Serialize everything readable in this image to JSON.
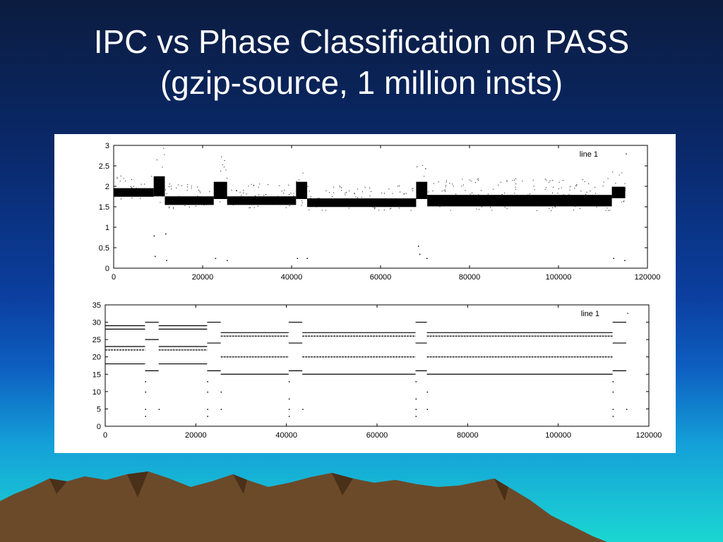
{
  "slide": {
    "title_line1": "IPC vs Phase Classification on PASS",
    "title_line2": "(gzip-source, 1 million insts)"
  },
  "colors": {
    "background_top": "#0b1c3f",
    "background_bottom": "#1bd6d2",
    "title_text": "#ffffff",
    "plot_background": "#ffffff",
    "plot_ink": "#000000",
    "mountain_fill": "#6b4a2a"
  },
  "chart_data": [
    {
      "type": "scatter",
      "title": "",
      "xlabel": "",
      "ylabel": "",
      "legend": {
        "entries": [
          "line 1"
        ],
        "placement": "top-right"
      },
      "xlim": [
        0,
        120000
      ],
      "ylim": [
        0,
        3
      ],
      "x_ticks": [
        "0",
        "20000",
        "40000",
        "60000",
        "80000",
        "100000",
        "120000"
      ],
      "y_ticks": [
        "0",
        "0.5",
        "1",
        "1.5",
        "2",
        "2.5",
        "3"
      ],
      "grid": false,
      "bands": [
        {
          "x_start": 0,
          "x_end": 9000,
          "y_center": 1.85,
          "y_spread": 0.15
        },
        {
          "x_start": 9000,
          "x_end": 11500,
          "y_center": 2.0,
          "y_spread": 0.35
        },
        {
          "x_start": 11500,
          "x_end": 22500,
          "y_center": 1.65,
          "y_spread": 0.15
        },
        {
          "x_start": 22500,
          "x_end": 25500,
          "y_center": 1.9,
          "y_spread": 0.3
        },
        {
          "x_start": 25500,
          "x_end": 41000,
          "y_center": 1.65,
          "y_spread": 0.15
        },
        {
          "x_start": 41000,
          "x_end": 43500,
          "y_center": 1.9,
          "y_spread": 0.3
        },
        {
          "x_start": 43500,
          "x_end": 68000,
          "y_center": 1.6,
          "y_spread": 0.15
        },
        {
          "x_start": 68000,
          "x_end": 70500,
          "y_center": 1.9,
          "y_spread": 0.3
        },
        {
          "x_start": 70500,
          "x_end": 112000,
          "y_center": 1.65,
          "y_spread": 0.2
        },
        {
          "x_start": 112000,
          "x_end": 115000,
          "y_center": 1.85,
          "y_spread": 0.2
        }
      ],
      "outliers": [
        [
          9000,
          0.8
        ],
        [
          9200,
          0.3
        ],
        [
          11600,
          0.85
        ],
        [
          11800,
          0.2
        ],
        [
          22800,
          0.25
        ],
        [
          25400,
          0.2
        ],
        [
          41200,
          0.25
        ],
        [
          43400,
          0.25
        ],
        [
          68400,
          0.55
        ],
        [
          68700,
          0.35
        ],
        [
          70300,
          0.25
        ],
        [
          112300,
          0.25
        ],
        [
          114800,
          0.2
        ]
      ]
    },
    {
      "type": "scatter",
      "title": "",
      "xlabel": "",
      "ylabel": "",
      "legend": {
        "entries": [
          "line 1"
        ],
        "placement": "top-right"
      },
      "xlim": [
        0,
        120000
      ],
      "ylim": [
        0,
        35
      ],
      "x_ticks": [
        "0",
        "20000",
        "40000",
        "60000",
        "80000",
        "100000",
        "120000"
      ],
      "y_ticks": [
        "0",
        "5",
        "10",
        "15",
        "20",
        "25",
        "30",
        "35"
      ],
      "grid": false,
      "segments": [
        {
          "x_start": 0,
          "x_end": 8800,
          "y": 29
        },
        {
          "x_start": 0,
          "x_end": 8800,
          "y": 28
        },
        {
          "x_start": 0,
          "x_end": 8800,
          "y": 23
        },
        {
          "x_start": 0,
          "x_end": 8800,
          "y": 22
        },
        {
          "x_start": 0,
          "x_end": 8800,
          "y": 18
        },
        {
          "x_start": 8800,
          "x_end": 11800,
          "y": 30
        },
        {
          "x_start": 8800,
          "x_end": 11800,
          "y": 25
        },
        {
          "x_start": 8800,
          "x_end": 11800,
          "y": 16
        },
        {
          "x_start": 11800,
          "x_end": 22500,
          "y": 29
        },
        {
          "x_start": 11800,
          "x_end": 22500,
          "y": 28
        },
        {
          "x_start": 11800,
          "x_end": 22500,
          "y": 23
        },
        {
          "x_start": 11800,
          "x_end": 22500,
          "y": 22
        },
        {
          "x_start": 11800,
          "x_end": 22500,
          "y": 18
        },
        {
          "x_start": 22500,
          "x_end": 25500,
          "y": 30
        },
        {
          "x_start": 22500,
          "x_end": 25500,
          "y": 24
        },
        {
          "x_start": 22500,
          "x_end": 25500,
          "y": 16
        },
        {
          "x_start": 25500,
          "x_end": 40500,
          "y": 27
        },
        {
          "x_start": 25500,
          "x_end": 40500,
          "y": 26
        },
        {
          "x_start": 25500,
          "x_end": 40500,
          "y": 20
        },
        {
          "x_start": 25500,
          "x_end": 40500,
          "y": 15
        },
        {
          "x_start": 40500,
          "x_end": 43500,
          "y": 30
        },
        {
          "x_start": 40500,
          "x_end": 43500,
          "y": 24
        },
        {
          "x_start": 40500,
          "x_end": 43500,
          "y": 16
        },
        {
          "x_start": 43500,
          "x_end": 68500,
          "y": 27
        },
        {
          "x_start": 43500,
          "x_end": 68500,
          "y": 26
        },
        {
          "x_start": 43500,
          "x_end": 68500,
          "y": 20
        },
        {
          "x_start": 43500,
          "x_end": 68500,
          "y": 15
        },
        {
          "x_start": 68500,
          "x_end": 71000,
          "y": 30
        },
        {
          "x_start": 68500,
          "x_end": 71000,
          "y": 24
        },
        {
          "x_start": 68500,
          "x_end": 71000,
          "y": 16
        },
        {
          "x_start": 71000,
          "x_end": 112000,
          "y": 27
        },
        {
          "x_start": 71000,
          "x_end": 112000,
          "y": 26
        },
        {
          "x_start": 71000,
          "x_end": 112000,
          "y": 20
        },
        {
          "x_start": 71000,
          "x_end": 112000,
          "y": 15
        },
        {
          "x_start": 112000,
          "x_end": 115000,
          "y": 30
        },
        {
          "x_start": 112000,
          "x_end": 115000,
          "y": 24
        },
        {
          "x_start": 112000,
          "x_end": 115000,
          "y": 16
        }
      ],
      "outliers": [
        [
          8800,
          13
        ],
        [
          8800,
          10
        ],
        [
          8800,
          5
        ],
        [
          8800,
          3
        ],
        [
          11800,
          5
        ],
        [
          22500,
          13
        ],
        [
          22500,
          10
        ],
        [
          22500,
          5
        ],
        [
          22500,
          3
        ],
        [
          25500,
          10
        ],
        [
          25500,
          5
        ],
        [
          40500,
          13
        ],
        [
          40500,
          8
        ],
        [
          40500,
          5
        ],
        [
          40500,
          3
        ],
        [
          43500,
          5
        ],
        [
          68500,
          13
        ],
        [
          68500,
          8
        ],
        [
          68500,
          5
        ],
        [
          68500,
          3
        ],
        [
          71000,
          10
        ],
        [
          71000,
          5
        ],
        [
          112000,
          13
        ],
        [
          112000,
          10
        ],
        [
          112000,
          5
        ],
        [
          112000,
          3
        ],
        [
          115000,
          5
        ]
      ]
    }
  ]
}
